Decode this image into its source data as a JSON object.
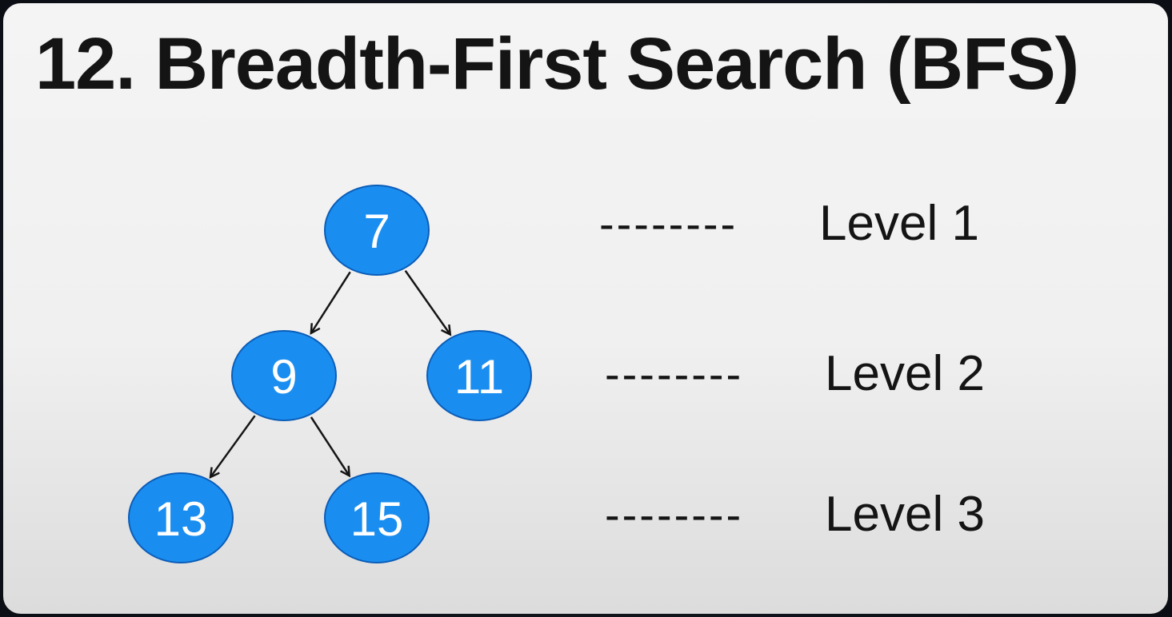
{
  "title": "12. Breadth-First Search (BFS)",
  "colors": {
    "node_fill": "#1a8ef0",
    "node_stroke": "#0b5db8",
    "node_text": "#ffffff",
    "edge": "#141414"
  },
  "tree": {
    "nodes": [
      {
        "id": "n7",
        "label": "7",
        "level": 1
      },
      {
        "id": "n9",
        "label": "9",
        "level": 2
      },
      {
        "id": "n11",
        "label": "11",
        "level": 2
      },
      {
        "id": "n13",
        "label": "13",
        "level": 3
      },
      {
        "id": "n15",
        "label": "15",
        "level": 3
      }
    ],
    "edges": [
      {
        "from": "n7",
        "to": "n9"
      },
      {
        "from": "n7",
        "to": "n11"
      },
      {
        "from": "n9",
        "to": "n13"
      },
      {
        "from": "n9",
        "to": "n15"
      }
    ]
  },
  "levels": [
    {
      "dashes": "--------",
      "label": "Level 1"
    },
    {
      "dashes": "--------",
      "label": "Level 2"
    },
    {
      "dashes": "--------",
      "label": "Level 3"
    }
  ]
}
